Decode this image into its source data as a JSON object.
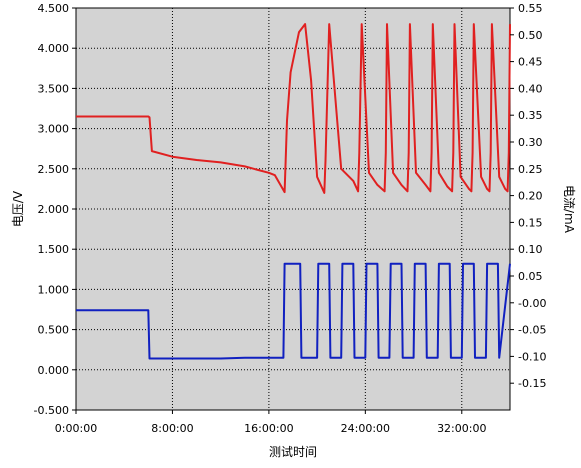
{
  "chart_data": {
    "type": "line",
    "title": "",
    "xlabel": "测试时间",
    "ylabel_left": "电压/V",
    "ylabel_right": "电流/mA",
    "grid": true,
    "background_color": "#d3d3d3",
    "x_axis": {
      "unit": "hours",
      "range": [
        0,
        36
      ],
      "tick_values": [
        0,
        8,
        16,
        24,
        32
      ],
      "tick_labels": [
        "0:00:00",
        "8:00:00",
        "16:00:00",
        "24:00:00",
        "32:00:00"
      ]
    },
    "y_left": {
      "range": [
        -0.5,
        4.5
      ],
      "tick_labels": [
        "4.500",
        "4.000",
        "3.500",
        "3.000",
        "2.500",
        "2.000",
        "1.500",
        "1.000",
        "0.500",
        "0.000",
        "-0.500"
      ],
      "tick_values": [
        4.5,
        4.0,
        3.5,
        3.0,
        2.5,
        2.0,
        1.5,
        1.0,
        0.5,
        0.0,
        -0.5
      ]
    },
    "y_right": {
      "range": [
        -0.2,
        0.55
      ],
      "tick_labels": [
        "0.55",
        "0.50",
        "0.45",
        "0.40",
        "0.35",
        "0.30",
        "0.25",
        "0.20",
        "0.15",
        "0.10",
        "0.05",
        "-0.00",
        "-0.05",
        "-0.10",
        "-0.15"
      ],
      "tick_values": [
        0.55,
        0.5,
        0.45,
        0.4,
        0.35,
        0.3,
        0.25,
        0.2,
        0.15,
        0.1,
        0.05,
        0.0,
        -0.05,
        -0.1,
        -0.15
      ]
    },
    "series": [
      {
        "axis": "left",
        "color": "#e02020",
        "x": [
          0,
          6,
          6.1,
          6.3,
          8,
          10,
          12,
          14,
          15,
          16,
          16.5,
          17.3,
          17.5,
          17.8,
          18.5,
          19,
          19.5,
          20,
          20.6,
          20.7,
          21,
          22,
          23,
          23.4,
          23.5,
          23.7,
          24.3,
          25,
          25.6,
          25.7,
          25.8,
          26.3,
          27,
          27.5,
          27.6,
          27.7,
          28.2,
          29,
          29.4,
          29.5,
          29.6,
          30.1,
          30.8,
          31.2,
          31.3,
          31.4,
          31.9,
          32.6,
          32.8,
          32.9,
          33.0,
          33.6,
          34.1,
          34.3,
          34.4,
          34.5,
          35.1,
          35.6,
          35.8,
          35.9,
          36.0
        ],
        "y": [
          3.15,
          3.15,
          3.14,
          2.72,
          2.65,
          2.61,
          2.58,
          2.53,
          2.49,
          2.45,
          2.42,
          2.21,
          3.1,
          3.7,
          4.2,
          4.3,
          3.6,
          2.4,
          2.2,
          2.6,
          4.3,
          2.5,
          2.35,
          2.22,
          2.7,
          4.3,
          2.45,
          2.3,
          2.22,
          2.7,
          4.3,
          2.45,
          2.3,
          2.22,
          2.7,
          4.3,
          2.45,
          2.3,
          2.22,
          2.7,
          4.3,
          2.45,
          2.28,
          2.22,
          2.7,
          4.3,
          2.4,
          2.25,
          2.22,
          2.7,
          4.3,
          2.4,
          2.25,
          2.22,
          2.7,
          4.3,
          2.4,
          2.25,
          2.22,
          2.7,
          4.3
        ]
      },
      {
        "axis": "left",
        "color": "#1020c0",
        "x": [
          0,
          6,
          6.1,
          8,
          10,
          12,
          14,
          16,
          17.2,
          17.3,
          18.6,
          18.7,
          20,
          20.1,
          21,
          21.1,
          22,
          22.1,
          23,
          23.1,
          24,
          24.1,
          25,
          25.1,
          26,
          26.1,
          27,
          27.1,
          28,
          28.1,
          29,
          29.1,
          30,
          30.1,
          31,
          31.1,
          32,
          32.1,
          33,
          33.1,
          34,
          34.1,
          35,
          35.1,
          36
        ],
        "y": [
          0.74,
          0.74,
          0.14,
          0.14,
          0.14,
          0.14,
          0.15,
          0.15,
          0.15,
          1.32,
          1.32,
          0.15,
          0.15,
          1.32,
          1.32,
          0.15,
          0.15,
          1.32,
          1.32,
          0.15,
          0.15,
          1.32,
          1.32,
          0.15,
          0.15,
          1.32,
          1.32,
          0.15,
          0.15,
          1.32,
          1.32,
          0.15,
          0.15,
          1.32,
          1.32,
          0.15,
          0.15,
          1.32,
          1.32,
          0.15,
          0.15,
          1.32,
          1.32,
          0.15,
          1.32
        ]
      }
    ]
  }
}
